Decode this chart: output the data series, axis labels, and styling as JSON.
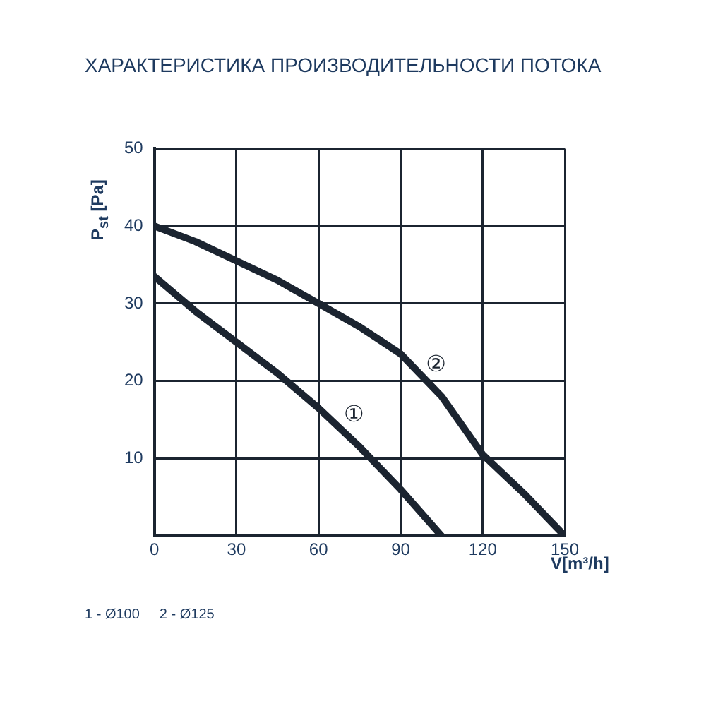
{
  "chart_data": {
    "type": "line",
    "title": "ХАРАКТЕРИСТИКА ПРОИЗВОДИТЕЛЬНОСТИ ПОТОКА",
    "xlabel": "V[m³/h]",
    "ylabel": "P$_{st}$ [Pa]",
    "x": [
      0,
      15,
      30,
      45,
      60,
      75,
      90,
      105,
      120,
      135,
      150
    ],
    "series": [
      {
        "name": "①",
        "color": "#1b2430",
        "values": [
          33.5,
          29,
          25,
          21,
          16.5,
          11.5,
          6,
          0,
          null,
          null,
          null
        ]
      },
      {
        "name": "②",
        "color": "#1b2430",
        "values": [
          40,
          38,
          35.5,
          33,
          30,
          27,
          23.5,
          18,
          10.5,
          5.5,
          0
        ]
      }
    ],
    "xlim": [
      0,
      150
    ],
    "xticks": [
      0,
      30,
      60,
      90,
      120,
      150
    ],
    "ylim": [
      0,
      50
    ],
    "yticks": [
      {
        "value": 0,
        "label": null
      },
      10,
      20,
      30,
      40,
      50
    ],
    "grid": true,
    "legend": false,
    "marker": "none",
    "line_style": "solid",
    "annotations": [
      "1 - Ø100",
      "2 - Ø125"
    ]
  }
}
